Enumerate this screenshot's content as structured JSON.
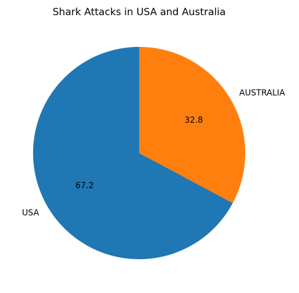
{
  "chart_data": {
    "type": "pie",
    "title": "Shark Attacks in USA and Australia",
    "slices": [
      {
        "label": "USA",
        "value": 67.2,
        "pct_label": "67.2",
        "color": "#1f77b4"
      },
      {
        "label": "AUSTRALIA",
        "value": 32.8,
        "pct_label": "32.8",
        "color": "#ff7f0e"
      }
    ],
    "start_angle_deg": 90,
    "direction": "counterclockwise"
  }
}
